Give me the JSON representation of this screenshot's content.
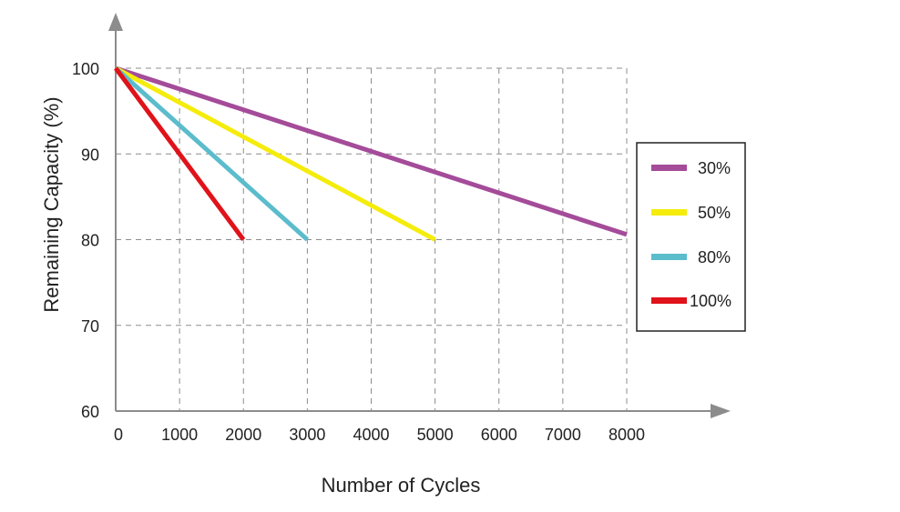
{
  "chart_data": {
    "type": "line",
    "title": "",
    "xlabel": "Number of Cycles",
    "ylabel": "Remaining Capacity (%)",
    "xlim": [
      0,
      8000
    ],
    "ylim": [
      60,
      100
    ],
    "x_ticks": [
      {
        "value": 0,
        "label": "0"
      },
      {
        "value": 1000,
        "label": "1000"
      },
      {
        "value": 2000,
        "label": "2000"
      },
      {
        "value": 3000,
        "label": "3000"
      },
      {
        "value": 4000,
        "label": "4000"
      },
      {
        "value": 5000,
        "label": "5000"
      },
      {
        "value": 6000,
        "label": "6000"
      },
      {
        "value": 7000,
        "label": "7000"
      },
      {
        "value": 8000,
        "label": "8000"
      }
    ],
    "y_ticks": [
      {
        "value": 60,
        "label": "60"
      },
      {
        "value": 70,
        "label": "70"
      },
      {
        "value": 80,
        "label": "80"
      },
      {
        "value": 90,
        "label": "90"
      },
      {
        "value": 100,
        "label": "100"
      }
    ],
    "grid": "dashed",
    "legend_position": "right",
    "series": [
      {
        "name": "30%",
        "color": "#a44b99",
        "points": [
          [
            0,
            100
          ],
          [
            8000,
            80.6
          ]
        ]
      },
      {
        "name": "50%",
        "color": "#f5ec0c",
        "points": [
          [
            0,
            100
          ],
          [
            5000,
            80
          ]
        ]
      },
      {
        "name": "80%",
        "color": "#5bbccc",
        "points": [
          [
            0,
            100
          ],
          [
            3000,
            80
          ]
        ]
      },
      {
        "name": "100%",
        "color": "#e0121a",
        "points": [
          [
            0,
            100
          ],
          [
            2000,
            80
          ]
        ]
      }
    ],
    "axis_color": "#8c8c8c",
    "grid_color": "#8c8c8c"
  }
}
